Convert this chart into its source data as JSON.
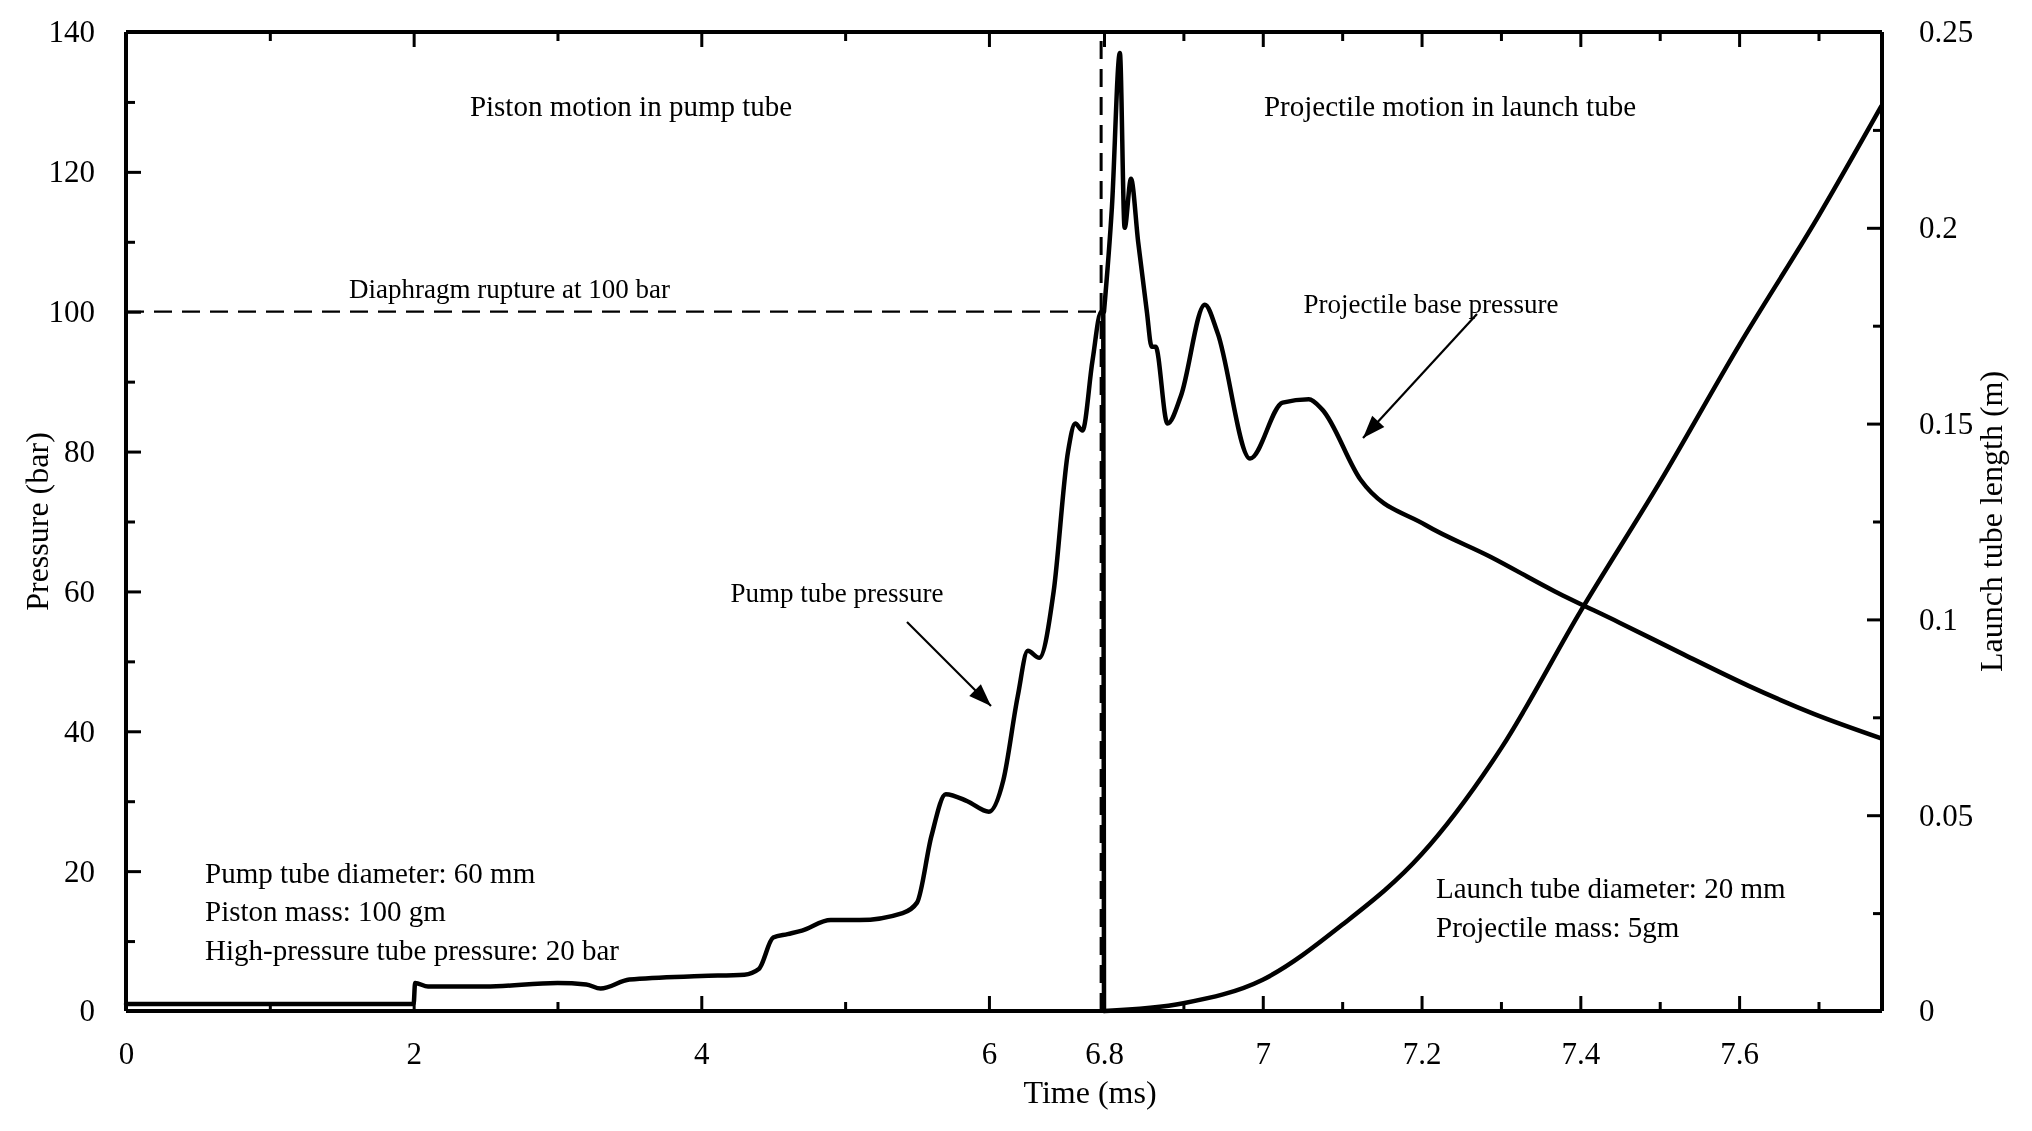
{
  "chart_data": [
    {
      "type": "line",
      "xlabel": "Time (ms)",
      "ylabel": "Pressure (bar)",
      "xlim": [
        0,
        6.8
      ],
      "ylim": [
        0,
        140
      ],
      "xticks": [
        0,
        {
          "value": 1,
          "label": null
        },
        2,
        {
          "value": 3,
          "label": null
        },
        4,
        {
          "value": 5,
          "label": null
        },
        6,
        6.8
      ],
      "yticks": [
        0,
        {
          "value": 10,
          "label": null
        },
        20,
        {
          "value": 30,
          "label": null
        },
        40,
        {
          "value": 50,
          "label": null
        },
        60,
        {
          "value": 70,
          "label": null
        },
        80,
        {
          "value": 90,
          "label": null
        },
        100,
        {
          "value": 110,
          "label": null
        },
        120,
        {
          "value": 130,
          "label": null
        },
        140
      ],
      "series": [
        {
          "color": "#000000",
          "x": [
            0,
            2,
            2.01,
            2.1,
            2.5,
            3,
            3.2,
            3.3,
            3.5,
            4,
            4.3,
            4.4,
            4.5,
            4.6,
            4.7,
            4.9,
            5.1,
            5.4,
            5.5,
            5.6,
            5.7,
            5.85,
            6.0,
            6.1,
            6.2,
            6.27,
            6.35,
            6.45,
            6.55,
            6.6,
            6.65,
            6.72,
            6.78,
            6.795,
            6.8
          ],
          "values": [
            1,
            1,
            4,
            3.5,
            3.5,
            4,
            3.8,
            3.2,
            4.5,
            5,
            5.2,
            6,
            10.5,
            11,
            11.5,
            13,
            13,
            14,
            15.5,
            25,
            31,
            30,
            28.5,
            33,
            45,
            51.5,
            50.5,
            60,
            80,
            84,
            83,
            93,
            100,
            100,
            0
          ]
        }
      ],
      "ref_lines": [
        {
          "axis": "y",
          "value": 100,
          "label": "Diaphragm rupture at 100 bar",
          "line_style": "dashed"
        },
        {
          "axis": "x",
          "value": 6.78,
          "line_style": "dashed"
        }
      ],
      "annotations": [
        "Piston motion in pump tube",
        "Pump tube pressure",
        "Pump tube diameter: 60 mm",
        "Piston mass: 100 gm",
        "High-pressure tube pressure: 20 bar"
      ]
    },
    {
      "type": "line",
      "y2label": "Launch tube length (m)",
      "xlim": [
        6.8,
        7.78
      ],
      "ylim": [
        0,
        140
      ],
      "y2lim": [
        0,
        0.25
      ],
      "xticks": [
        {
          "value": 6.8,
          "label": null
        },
        {
          "value": 6.9,
          "label": null
        },
        7,
        {
          "value": 7.1,
          "label": null
        },
        7.2,
        {
          "value": 7.3,
          "label": null
        },
        7.4,
        {
          "value": 7.5,
          "label": null
        },
        7.6,
        {
          "value": 7.7,
          "label": null
        }
      ],
      "y2ticks": [
        0,
        {
          "value": 0.025,
          "label": null
        },
        0.05,
        {
          "value": 0.075,
          "label": null
        },
        0.1,
        {
          "value": 0.125,
          "label": null
        },
        0.15,
        {
          "value": 0.175,
          "label": null
        },
        0.2,
        {
          "value": 0.225,
          "label": null
        },
        0.25
      ],
      "series": [
        {
          "color": "#000000",
          "x": [
            6.8,
            6.81,
            6.82,
            6.826,
            6.834,
            6.843,
            6.854,
            6.86,
            6.865,
            6.88,
            6.897,
            6.927,
            6.943,
            6.984,
            7.025,
            7.058,
            7.075,
            7.123,
            7.205,
            7.286,
            7.368,
            7.45,
            7.53,
            7.612,
            7.694,
            7.779
          ],
          "values": [
            100,
            115,
            137,
            112,
            119,
            110,
            100,
            95,
            95,
            84,
            88,
            101,
            97,
            79,
            87,
            87.5,
            86,
            76,
            69.5,
            65,
            60,
            55.5,
            51,
            46.5,
            42.5,
            39
          ]
        },
        {
          "color": "#000000",
          "axis": "y2",
          "x": [
            6.8,
            6.9,
            7.0,
            7.1,
            7.2,
            7.3,
            7.4,
            7.5,
            7.6,
            7.7,
            7.779
          ],
          "values": [
            0,
            0.002,
            0.008,
            0.022,
            0.04,
            0.067,
            0.102,
            0.135,
            0.17,
            0.203,
            0.231
          ]
        }
      ],
      "annotations": [
        "Projectile motion in launch tube",
        "Projectile base pressure",
        "Launch tube diameter: 20 mm",
        "Projectile mass: 5gm"
      ]
    }
  ]
}
